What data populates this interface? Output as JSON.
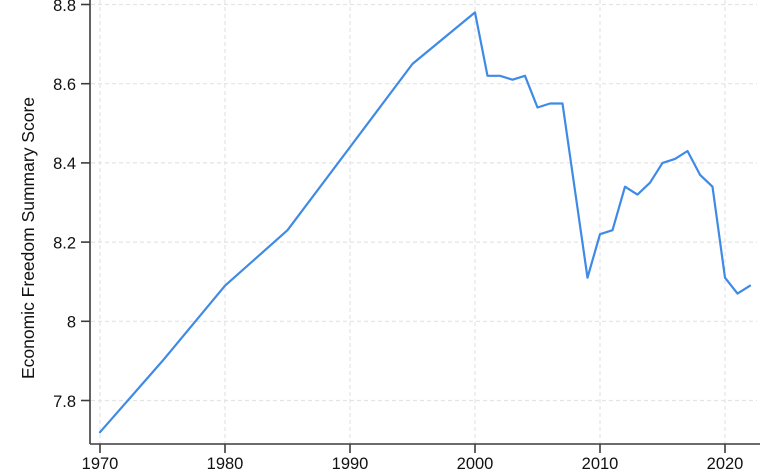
{
  "chart_data": {
    "type": "line",
    "title": "",
    "xlabel": "",
    "ylabel": "Economic Freedom Summary Score",
    "grid": "both, dashed, on",
    "legend": "none",
    "x_axis": {
      "ticks": [
        1970,
        1980,
        1990,
        2000,
        2010,
        2020
      ],
      "tick_labels": [
        "1970",
        "1980",
        "1990",
        "2000",
        "2010",
        "2020"
      ],
      "domain": [
        1969.2,
        2022.8
      ]
    },
    "y_axis": {
      "ticks": [
        7.8,
        8.0,
        8.2,
        8.4,
        8.6,
        8.8
      ],
      "tick_labels": [
        "7.8",
        "8",
        "8.2",
        "8.4",
        "8.6",
        "8.8"
      ],
      "domain": [
        7.69,
        8.81
      ]
    },
    "series": [
      {
        "name": "Economic Freedom Summary Score",
        "x": [
          1970,
          1975,
          1980,
          1985,
          1990,
          1995,
          2000,
          2001,
          2002,
          2003,
          2004,
          2005,
          2006,
          2007,
          2008,
          2009,
          2010,
          2011,
          2012,
          2013,
          2014,
          2015,
          2016,
          2017,
          2018,
          2019,
          2020,
          2021,
          2022
        ],
        "y": [
          7.72,
          7.9,
          8.09,
          8.23,
          8.44,
          8.65,
          8.78,
          8.62,
          8.62,
          8.61,
          8.62,
          8.54,
          8.55,
          8.55,
          8.33,
          8.11,
          8.22,
          8.23,
          8.34,
          8.32,
          8.35,
          8.4,
          8.41,
          8.43,
          8.37,
          8.34,
          8.11,
          8.07,
          8.09
        ]
      }
    ],
    "colors": {
      "line": "#3E8AE6",
      "grid": "#e4e4e4",
      "axis": "#3c3c3c",
      "text": "#111111",
      "background": "#ffffff"
    }
  }
}
